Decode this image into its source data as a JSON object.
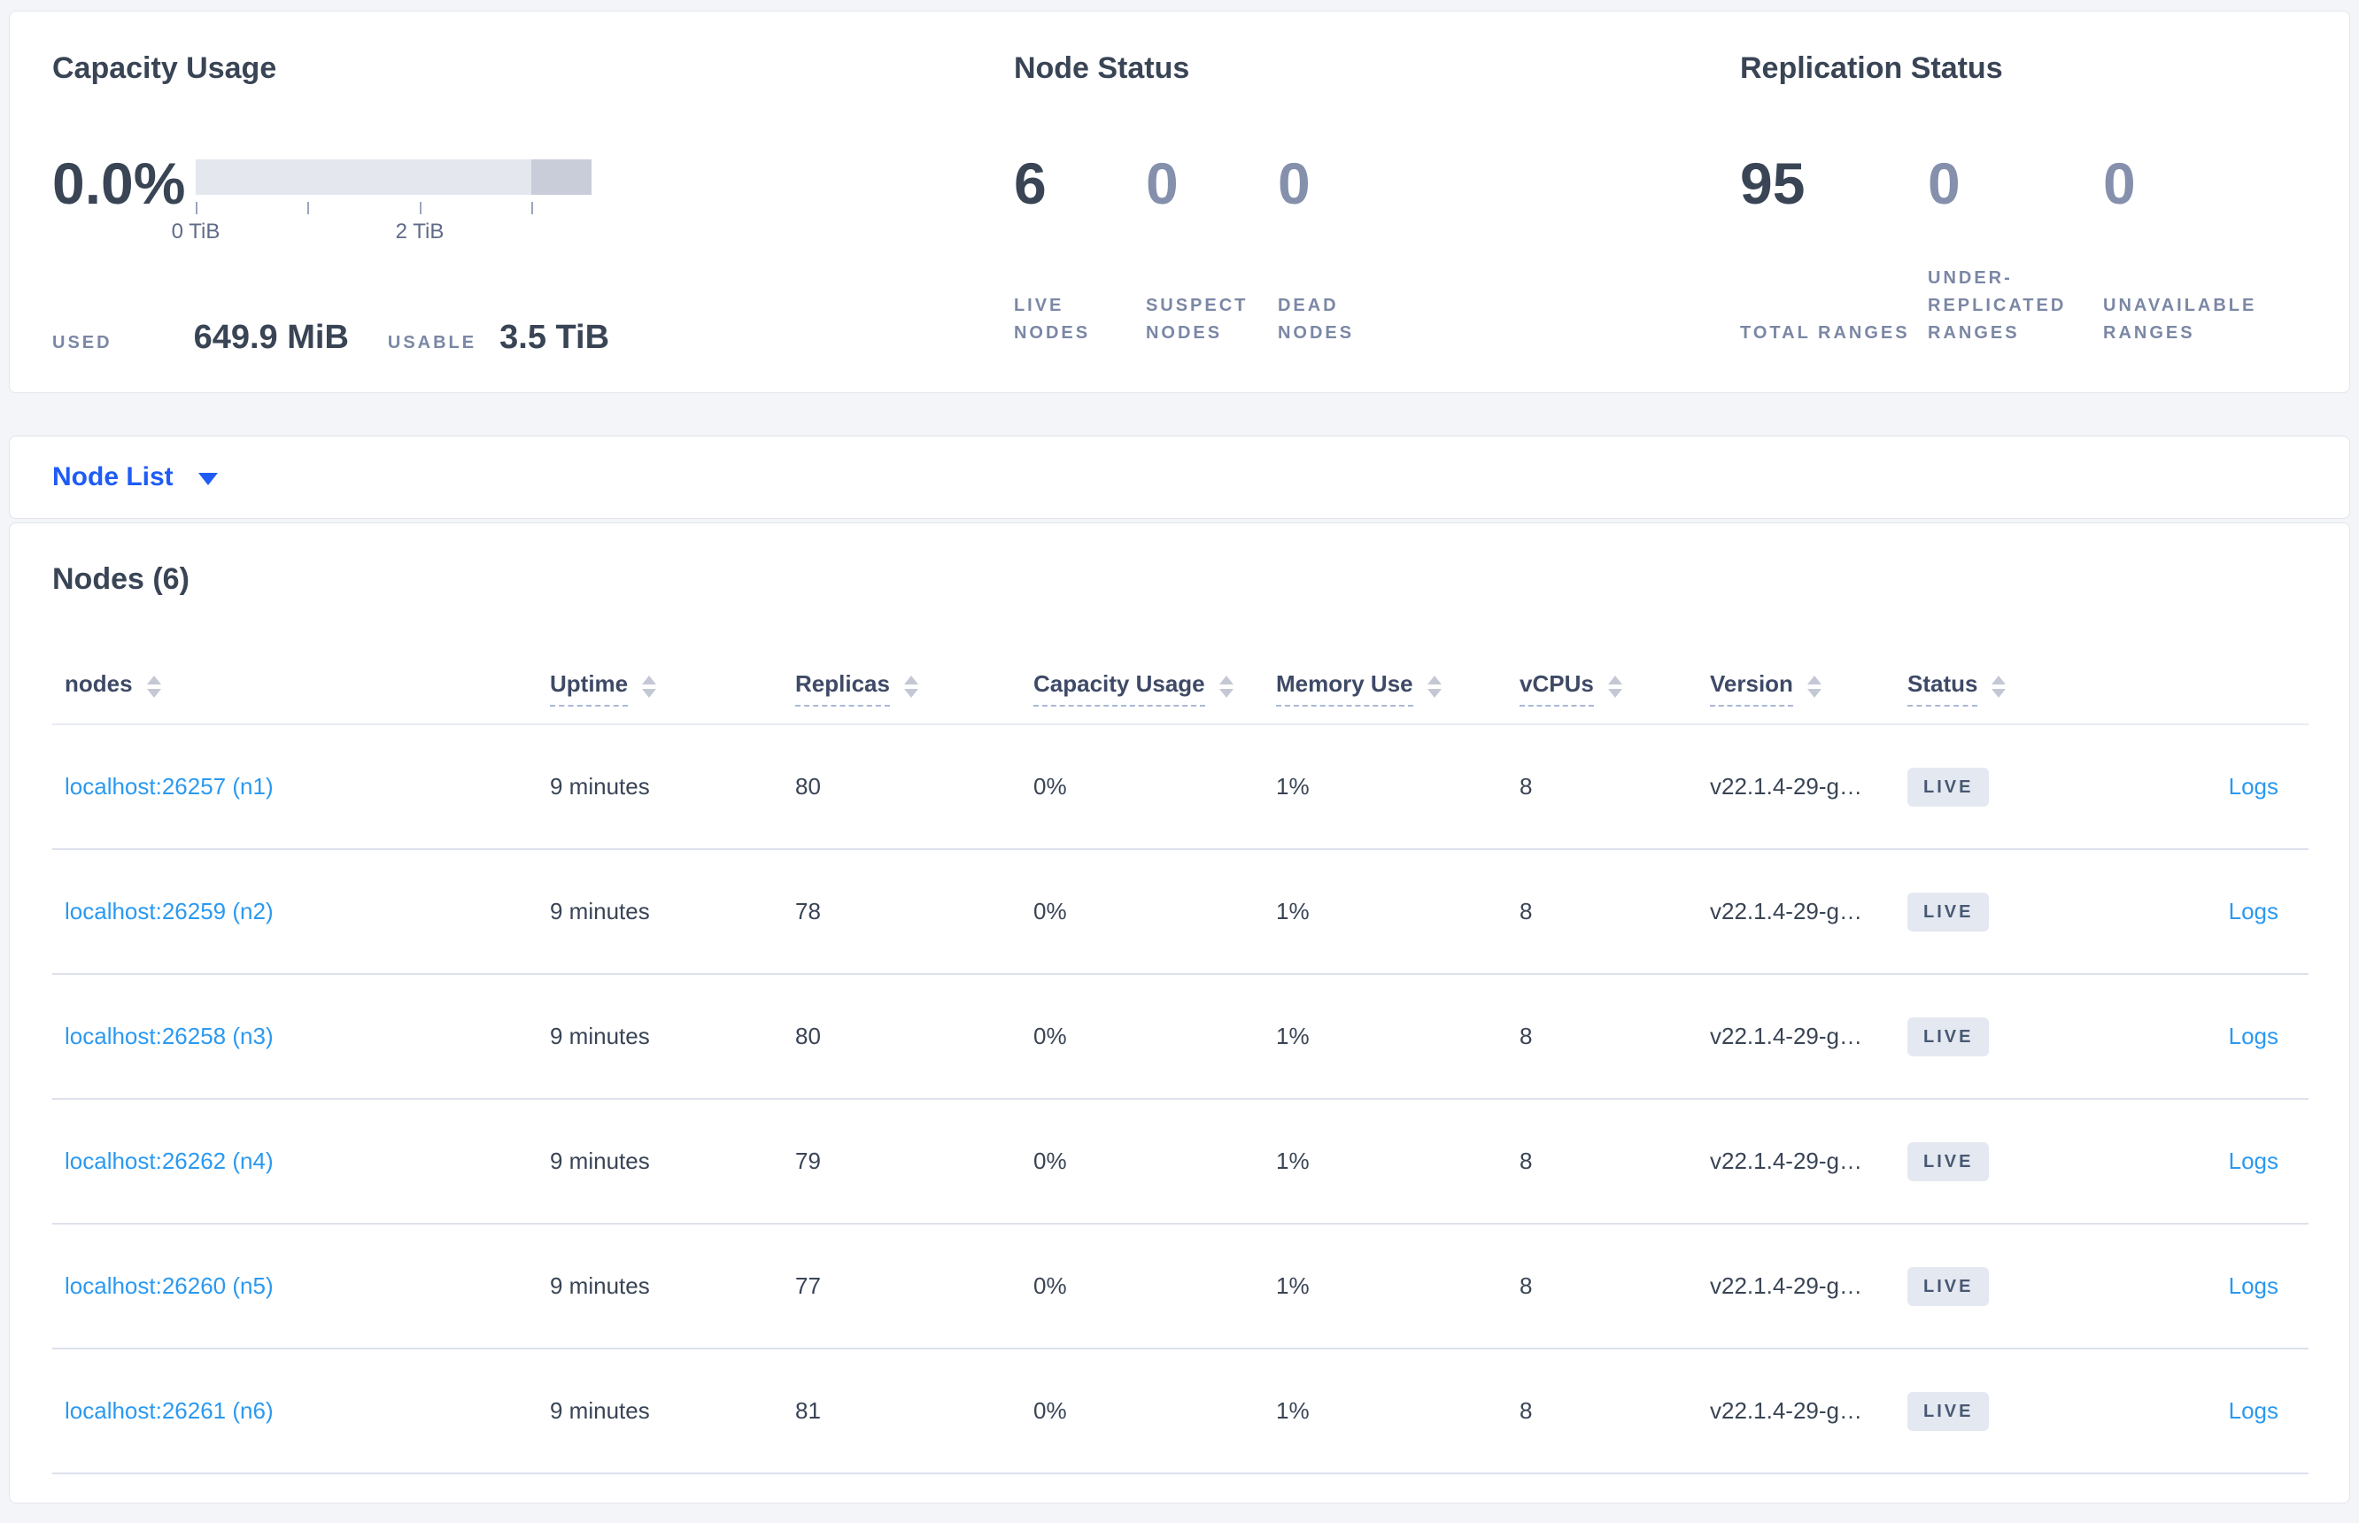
{
  "colors": {
    "accent_blue": "#1f5cf5",
    "link_blue": "#2b99f0",
    "text_dark": "#394455",
    "text_muted": "#7b87a5",
    "badge_bg": "#e4e8f1",
    "bar_track": "#e4e7ee",
    "bar_end_segment": "#c9cdd9",
    "page_bg": "#f4f5f9"
  },
  "panels": {
    "capacity": {
      "title": "Capacity Usage",
      "percent": "0.0%",
      "axis_ticks": [
        "0 TiB",
        "2 TiB"
      ],
      "used_label": "USED",
      "used_value": "649.9 MiB",
      "usable_label": "USABLE",
      "usable_value": "3.5 TiB"
    },
    "node_status": {
      "title": "Node Status",
      "stats": [
        {
          "value": "6",
          "label": "LIVE NODES",
          "muted": false
        },
        {
          "value": "0",
          "label": "SUSPECT NODES",
          "muted": true
        },
        {
          "value": "0",
          "label": "DEAD NODES",
          "muted": true
        }
      ]
    },
    "replication": {
      "title": "Replication Status",
      "stats": [
        {
          "value": "95",
          "label": "TOTAL RANGES",
          "muted": false
        },
        {
          "value": "0",
          "label": "UNDER-REPLICATED RANGES",
          "muted": true
        },
        {
          "value": "0",
          "label": "UNAVAILABLE RANGES",
          "muted": true
        }
      ]
    }
  },
  "node_list": {
    "dropdown_label": "Node List"
  },
  "nodes_section": {
    "title": "Nodes (6)"
  },
  "table": {
    "headers": [
      {
        "label": "nodes",
        "sortable": true,
        "dashed": false
      },
      {
        "label": "Uptime",
        "sortable": true,
        "dashed": true
      },
      {
        "label": "Replicas",
        "sortable": true,
        "dashed": true
      },
      {
        "label": "Capacity Usage",
        "sortable": true,
        "dashed": true
      },
      {
        "label": "Memory Use",
        "sortable": true,
        "dashed": true
      },
      {
        "label": "vCPUs",
        "sortable": true,
        "dashed": true
      },
      {
        "label": "Version",
        "sortable": true,
        "dashed": true
      },
      {
        "label": "Status",
        "sortable": true,
        "dashed": true
      },
      {
        "label": "",
        "sortable": false,
        "dashed": false
      }
    ],
    "rows": [
      {
        "node": "localhost:26257 (n1)",
        "uptime": "9 minutes",
        "replicas": "80",
        "capacity_usage": "0%",
        "memory_use": "1%",
        "vcpus": "8",
        "version": "v22.1.4-29-g…",
        "status": "LIVE",
        "logs_label": "Logs"
      },
      {
        "node": "localhost:26259 (n2)",
        "uptime": "9 minutes",
        "replicas": "78",
        "capacity_usage": "0%",
        "memory_use": "1%",
        "vcpus": "8",
        "version": "v22.1.4-29-g…",
        "status": "LIVE",
        "logs_label": "Logs"
      },
      {
        "node": "localhost:26258 (n3)",
        "uptime": "9 minutes",
        "replicas": "80",
        "capacity_usage": "0%",
        "memory_use": "1%",
        "vcpus": "8",
        "version": "v22.1.4-29-g…",
        "status": "LIVE",
        "logs_label": "Logs"
      },
      {
        "node": "localhost:26262 (n4)",
        "uptime": "9 minutes",
        "replicas": "79",
        "capacity_usage": "0%",
        "memory_use": "1%",
        "vcpus": "8",
        "version": "v22.1.4-29-g…",
        "status": "LIVE",
        "logs_label": "Logs"
      },
      {
        "node": "localhost:26260 (n5)",
        "uptime": "9 minutes",
        "replicas": "77",
        "capacity_usage": "0%",
        "memory_use": "1%",
        "vcpus": "8",
        "version": "v22.1.4-29-g…",
        "status": "LIVE",
        "logs_label": "Logs"
      },
      {
        "node": "localhost:26261 (n6)",
        "uptime": "9 minutes",
        "replicas": "81",
        "capacity_usage": "0%",
        "memory_use": "1%",
        "vcpus": "8",
        "version": "v22.1.4-29-g…",
        "status": "LIVE",
        "logs_label": "Logs"
      }
    ]
  }
}
